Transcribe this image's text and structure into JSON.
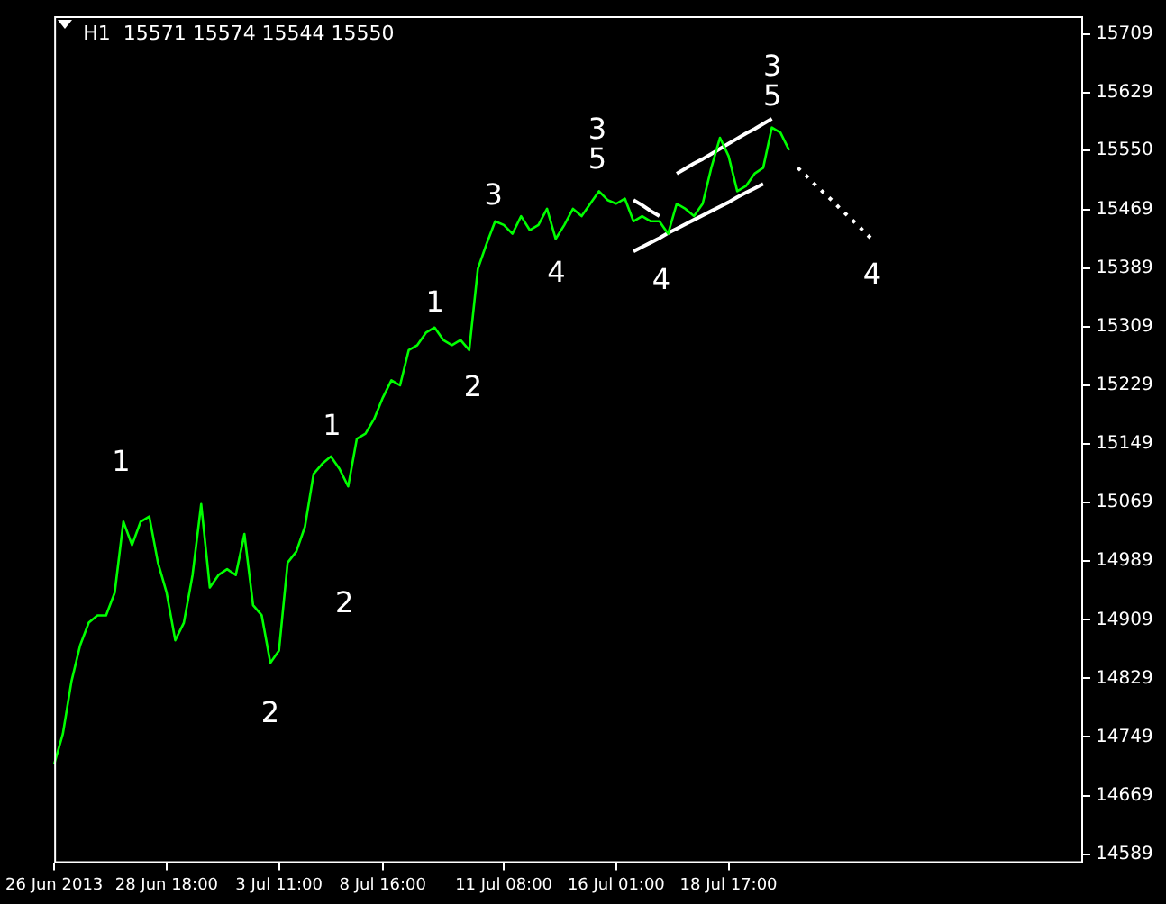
{
  "chart_data": {
    "type": "line",
    "title": "H1  15571 15574 15544 15550",
    "categories": [
      "26 Jun 2013",
      null,
      null,
      null,
      null,
      null,
      null,
      null,
      null,
      null,
      null,
      null,
      null,
      "28 Jun 18:00",
      null,
      null,
      null,
      null,
      null,
      null,
      null,
      null,
      null,
      null,
      null,
      null,
      "3 Jul 11:00",
      null,
      null,
      null,
      null,
      null,
      null,
      null,
      null,
      null,
      null,
      null,
      "8 Jul 16:00",
      null,
      null,
      null,
      null,
      null,
      null,
      null,
      null,
      null,
      null,
      null,
      null,
      null,
      "11 Jul 08:00",
      null,
      null,
      null,
      null,
      null,
      null,
      null,
      null,
      null,
      null,
      null,
      null,
      "16 Jul 01:00",
      null,
      null,
      null,
      null,
      null,
      null,
      null,
      null,
      null,
      null,
      null,
      null,
      "18 Jul 17:00",
      null,
      null,
      null,
      null,
      null,
      null,
      null,
      null,
      null,
      null,
      null,
      null,
      null,
      null,
      null,
      null,
      null,
      null,
      null,
      null,
      null,
      null,
      null,
      null,
      null,
      null,
      null,
      null,
      null,
      null,
      null,
      null,
      null,
      null,
      null,
      null,
      null,
      null,
      null,
      null,
      null
    ],
    "series": [
      {
        "color": "#00ff00",
        "values": [
          14712,
          14753,
          14825,
          14874,
          14905,
          14915,
          14915,
          14946,
          15043,
          15011,
          15043,
          15050,
          14987,
          14946,
          14881,
          14905,
          14970,
          15067,
          14953,
          14970,
          14978,
          14970,
          15026,
          14929,
          14915,
          14850,
          14867,
          14987,
          15002,
          15036,
          15108,
          15122,
          15132,
          15115,
          15091,
          15156,
          15163,
          15183,
          15212,
          15236,
          15229,
          15277,
          15284,
          15301,
          15308,
          15291,
          15284,
          15291,
          15277,
          15388,
          15422,
          15453,
          15448,
          15436,
          15460,
          15441,
          15448,
          15470,
          15429,
          15448,
          15470,
          15460,
          15477,
          15494,
          15482,
          15477,
          15484,
          15453,
          15460,
          15453,
          15453,
          15436,
          15477,
          15470,
          15460,
          15477,
          15526,
          15567,
          15542,
          15494,
          15501,
          15518,
          15526,
          15581,
          15574,
          15550,
          null,
          null,
          null,
          null,
          null,
          null,
          null,
          null,
          null,
          null,
          null,
          null,
          null,
          null,
          null,
          null,
          null,
          null,
          null,
          null,
          null,
          null,
          null,
          null,
          null,
          null,
          null,
          null,
          null,
          null,
          null,
          null,
          null,
          null
        ]
      },
      {
        "type": "line",
        "color": "#ffffff",
        "values": [
          null,
          null,
          null,
          null,
          null,
          null,
          null,
          null,
          null,
          null,
          null,
          null,
          null,
          null,
          null,
          null,
          null,
          null,
          null,
          null,
          null,
          null,
          null,
          null,
          null,
          null,
          null,
          null,
          null,
          null,
          null,
          null,
          null,
          null,
          null,
          null,
          null,
          null,
          null,
          null,
          null,
          null,
          null,
          null,
          null,
          null,
          null,
          null,
          null,
          null,
          null,
          null,
          null,
          null,
          null,
          null,
          null,
          null,
          null,
          null,
          null,
          null,
          null,
          null,
          null,
          null,
          null,
          null,
          null,
          null,
          null,
          null,
          15518,
          15525,
          15532,
          15538,
          15545,
          15552,
          15559,
          15566,
          15573,
          15579,
          15586,
          15593,
          null,
          null,
          null,
          null,
          null,
          null,
          null,
          null,
          null,
          null,
          null,
          null,
          null,
          null,
          null,
          null,
          null,
          null,
          null,
          null,
          null,
          null,
          null,
          null,
          null,
          null,
          null,
          null,
          null,
          null,
          null,
          null,
          null,
          null,
          null,
          null
        ]
      },
      {
        "type": "line",
        "color": "#ffffff",
        "values": [
          null,
          null,
          null,
          null,
          null,
          null,
          null,
          null,
          null,
          null,
          null,
          null,
          null,
          null,
          null,
          null,
          null,
          null,
          null,
          null,
          null,
          null,
          null,
          null,
          null,
          null,
          null,
          null,
          null,
          null,
          null,
          null,
          null,
          null,
          null,
          null,
          null,
          null,
          null,
          null,
          null,
          null,
          null,
          null,
          null,
          null,
          null,
          null,
          null,
          null,
          null,
          null,
          null,
          null,
          null,
          null,
          null,
          null,
          null,
          null,
          null,
          null,
          null,
          null,
          null,
          null,
          null,
          15412,
          15418,
          15424,
          15430,
          15437,
          15443,
          15449,
          15455,
          15461,
          15467,
          15473,
          15479,
          15486,
          15492,
          15498,
          15504,
          null,
          null,
          null,
          null,
          null,
          null,
          null,
          null,
          null,
          null,
          null,
          null,
          null,
          null,
          null,
          null,
          null,
          null,
          null,
          null,
          null,
          null,
          null,
          null,
          null,
          null,
          null,
          null,
          null,
          null,
          null,
          null,
          null,
          null,
          null,
          null,
          null
        ]
      },
      {
        "type": "line",
        "color": "#ffffff",
        "values": [
          null,
          null,
          null,
          null,
          null,
          null,
          null,
          null,
          null,
          null,
          null,
          null,
          null,
          null,
          null,
          null,
          null,
          null,
          null,
          null,
          null,
          null,
          null,
          null,
          null,
          null,
          null,
          null,
          null,
          null,
          null,
          null,
          null,
          null,
          null,
          null,
          null,
          null,
          null,
          null,
          null,
          null,
          null,
          null,
          null,
          null,
          null,
          null,
          null,
          null,
          null,
          null,
          null,
          null,
          null,
          null,
          null,
          null,
          null,
          null,
          null,
          null,
          null,
          null,
          null,
          null,
          null,
          15482,
          15475,
          15467,
          15460,
          null,
          null,
          null,
          null,
          null,
          null,
          null,
          null,
          null,
          null,
          null,
          null,
          null,
          null,
          null,
          null,
          null,
          null,
          null,
          null,
          null,
          null,
          null,
          null,
          null,
          null,
          null,
          null,
          null,
          null,
          null,
          null,
          null,
          null,
          null,
          null,
          null,
          null,
          null,
          null,
          null,
          null,
          null,
          null,
          null,
          null,
          null,
          null,
          null
        ]
      },
      {
        "type": "line",
        "color": "#ffffff",
        "line_style": "dotted",
        "values": [
          null,
          null,
          null,
          null,
          null,
          null,
          null,
          null,
          null,
          null,
          null,
          null,
          null,
          null,
          null,
          null,
          null,
          null,
          null,
          null,
          null,
          null,
          null,
          null,
          null,
          null,
          null,
          null,
          null,
          null,
          null,
          null,
          null,
          null,
          null,
          null,
          null,
          null,
          null,
          null,
          null,
          null,
          null,
          null,
          null,
          null,
          null,
          null,
          null,
          null,
          null,
          null,
          null,
          null,
          null,
          null,
          null,
          null,
          null,
          null,
          null,
          null,
          null,
          null,
          null,
          null,
          null,
          null,
          null,
          null,
          null,
          null,
          null,
          null,
          null,
          null,
          null,
          null,
          null,
          null,
          null,
          null,
          null,
          null,
          null,
          null,
          15526,
          15515,
          15503,
          15492,
          15481,
          15469,
          15458,
          15447,
          15435,
          15424,
          null,
          null,
          null,
          null,
          null,
          null,
          null,
          null,
          null,
          null,
          null,
          null,
          null,
          null,
          null,
          null,
          null,
          null,
          null,
          null,
          null,
          null,
          null,
          null
        ]
      }
    ],
    "ylim": [
      14577,
      15733
    ],
    "yticks": [
      14589,
      14669,
      14749,
      14829,
      14909,
      14989,
      15069,
      15149,
      15229,
      15309,
      15389,
      15469,
      15550,
      15629,
      15709
    ],
    "annotations": [
      "1",
      "2",
      "1",
      "2",
      "1",
      "2",
      "3",
      "4",
      "3",
      "5",
      "4",
      "3",
      "5",
      "4"
    ],
    "grid": false,
    "legend": false,
    "marker": "none"
  }
}
